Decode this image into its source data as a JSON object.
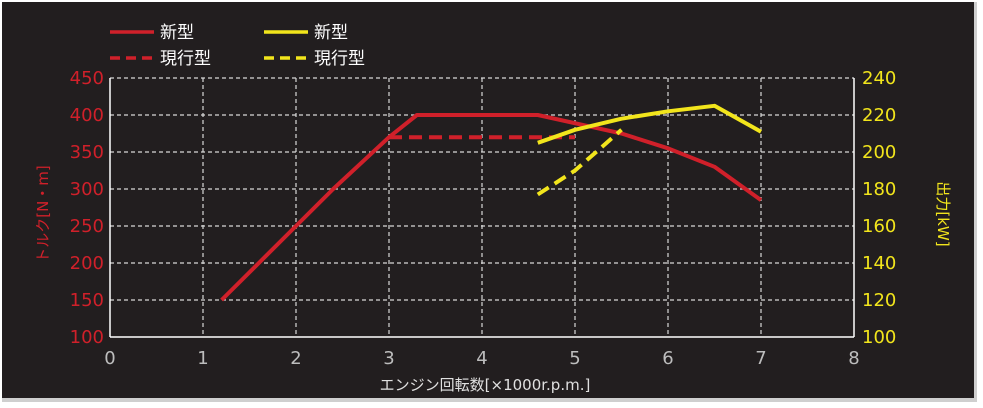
{
  "chart_data": {
    "type": "line",
    "xlabel": "エンジン回転数[×1000r.p.m.]",
    "ylabel_left": "トルク[N・m]",
    "ylabel_right": "出力[kW]",
    "xlim": [
      0,
      8
    ],
    "ylim_left": [
      100,
      450
    ],
    "ylim_right": [
      100,
      240
    ],
    "x_ticks": [
      "0",
      "1",
      "2",
      "3",
      "4",
      "5",
      "6",
      "7",
      "8"
    ],
    "y_ticks_left": [
      "100",
      "150",
      "200",
      "250",
      "300",
      "350",
      "400",
      "450"
    ],
    "y_ticks_right": [
      "100",
      "120",
      "140",
      "160",
      "180",
      "200",
      "220",
      "240"
    ],
    "grid": true,
    "legend_position": "top-left",
    "colors": {
      "torque": "#d0202a",
      "power": "#f2e51c",
      "background": "#221e1f",
      "grid": "#d8d8d8"
    },
    "series": [
      {
        "name": "新型",
        "axis": "left",
        "style": "solid",
        "color": "#d0202a",
        "points": [
          [
            1.2,
            150
          ],
          [
            2.0,
            250
          ],
          [
            2.4,
            300
          ],
          [
            3.0,
            370
          ],
          [
            3.3,
            400
          ],
          [
            4.0,
            400
          ],
          [
            4.6,
            400
          ],
          [
            5.5,
            375
          ],
          [
            6.0,
            355
          ],
          [
            6.5,
            330
          ],
          [
            7.0,
            285
          ]
        ]
      },
      {
        "name": "現行型",
        "axis": "left",
        "style": "dashed",
        "color": "#d0202a",
        "points": [
          [
            3.0,
            370
          ],
          [
            3.3,
            370
          ],
          [
            4.0,
            370
          ],
          [
            5.0,
            370
          ]
        ]
      },
      {
        "name": "新型",
        "axis": "right",
        "style": "solid",
        "color": "#f2e51c",
        "points": [
          [
            4.6,
            205
          ],
          [
            5.0,
            212
          ],
          [
            5.5,
            218
          ],
          [
            6.0,
            222
          ],
          [
            6.5,
            225
          ],
          [
            7.0,
            211
          ]
        ]
      },
      {
        "name": "現行型",
        "axis": "right",
        "style": "dashed",
        "color": "#f2e51c",
        "points": [
          [
            4.6,
            177
          ],
          [
            5.0,
            190
          ],
          [
            5.5,
            212
          ]
        ]
      }
    ]
  }
}
